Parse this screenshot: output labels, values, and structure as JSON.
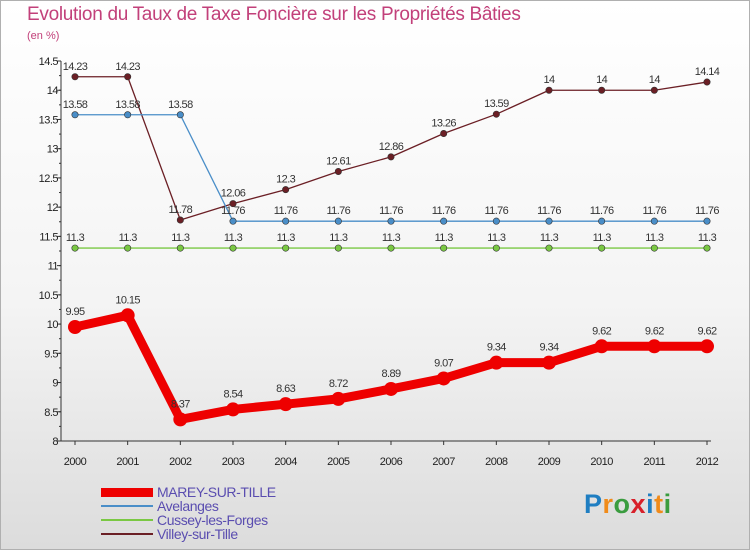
{
  "title": "Evolution du Taux de Taxe Foncière sur les Propriétés Bâties",
  "unit_label": "(en %)",
  "logo": {
    "text": "Proxiti",
    "colors": [
      "#1f7ec2",
      "#f08b1a",
      "#3a9c3f",
      "#d8202a",
      "#1f7ec2",
      "#f08b1a",
      "#3a9c3f"
    ]
  },
  "chart_data": {
    "type": "line",
    "x": [
      "2000",
      "2001",
      "2002",
      "2003",
      "2004",
      "2005",
      "2006",
      "2007",
      "2008",
      "2009",
      "2010",
      "2011",
      "2012"
    ],
    "ylim": [
      8,
      14.5
    ],
    "yticks": [
      "8",
      "8.5",
      "9",
      "9.5",
      "10",
      "10.5",
      "11",
      "11.5",
      "12",
      "12.5",
      "13",
      "13.5",
      "14",
      "14.5"
    ],
    "series": [
      {
        "name": "Villey-sur-Tille",
        "color": "#6b1f25",
        "values": [
          14.23,
          14.23,
          11.78,
          12.06,
          12.3,
          12.61,
          12.86,
          13.26,
          13.59,
          14,
          14,
          14,
          14.14
        ],
        "labels": [
          "14.23",
          "14.23",
          "11.78",
          "12.06",
          "12.3",
          "12.61",
          "12.86",
          "13.26",
          "13.59",
          "14",
          "14",
          "14",
          "14.14"
        ]
      },
      {
        "name": "Avelanges",
        "color": "#4a8ec8",
        "values": [
          13.58,
          13.58,
          13.58,
          11.76,
          11.76,
          11.76,
          11.76,
          11.76,
          11.76,
          11.76,
          11.76,
          11.76,
          11.76
        ],
        "labels": [
          "13.58",
          "13.58",
          "13.58",
          "11.76",
          "11.76",
          "11.76",
          "11.76",
          "11.76",
          "11.76",
          "11.76",
          "11.76",
          "11.76",
          "11.76"
        ]
      },
      {
        "name": "Cussey-les-Forges",
        "color": "#7ac843",
        "values": [
          11.3,
          11.3,
          11.3,
          11.3,
          11.3,
          11.3,
          11.3,
          11.3,
          11.3,
          11.3,
          11.3,
          11.3,
          11.3
        ],
        "labels": [
          "11.3",
          "11.3",
          "11.3",
          "11.3",
          "11.3",
          "11.3",
          "11.3",
          "11.3",
          "11.3",
          "11.3",
          "11.3",
          "11.3",
          "11.3"
        ]
      },
      {
        "name": "MAREY-SUR-TILLE",
        "color": "#ee0000",
        "values": [
          9.95,
          10.15,
          8.37,
          8.54,
          8.63,
          8.72,
          8.89,
          9.07,
          9.34,
          9.34,
          9.62,
          9.62,
          9.62
        ],
        "labels": [
          "9.95",
          "10.15",
          "8.37",
          "8.54",
          "8.63",
          "8.72",
          "8.89",
          "9.07",
          "9.34",
          "9.34",
          "9.62",
          "9.62",
          "9.62"
        ]
      }
    ],
    "legend": [
      "MAREY-SUR-TILLE",
      "Avelanges",
      "Cussey-les-Forges",
      "Villey-sur-Tille"
    ],
    "grid": false
  }
}
